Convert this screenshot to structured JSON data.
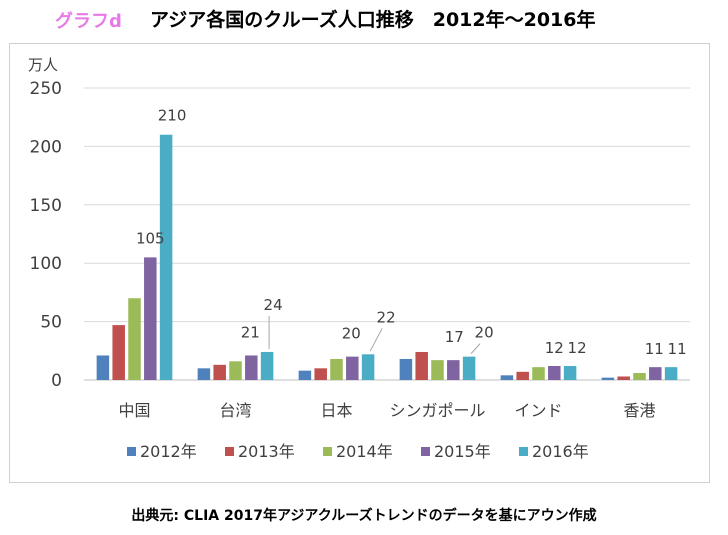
{
  "header": {
    "tag": "グラフd",
    "title": "アジア各国のクルーズ人口推移　2012年～2016年"
  },
  "source": "出典元: CLIA 2017年アジアクルーズトレンドのデータを基にアウン作成",
  "colors": {
    "2012年": "#4f81bd",
    "2013年": "#c0504d",
    "2014年": "#9bbb59",
    "2015年": "#8064a2",
    "2016年": "#4bacc6",
    "grid": "#d9d9d9",
    "callout": "#a6a6a6"
  },
  "chart_data": {
    "type": "bar",
    "title": "アジア各国のクルーズ人口推移　2012年～2016年",
    "ylabel": "万人",
    "xlabel": "",
    "ylim": [
      0,
      250
    ],
    "yticks": [
      0,
      50,
      100,
      150,
      200,
      250
    ],
    "grid": true,
    "legend_position": "bottom",
    "categories": [
      "中国",
      "台湾",
      "日本",
      "シンガポール",
      "インド",
      "香港"
    ],
    "series": [
      {
        "name": "2012年",
        "values": [
          21,
          10,
          8,
          18,
          4,
          2
        ]
      },
      {
        "name": "2013年",
        "values": [
          47,
          13,
          10,
          24,
          7,
          3
        ]
      },
      {
        "name": "2014年",
        "values": [
          70,
          16,
          18,
          17,
          11,
          6
        ]
      },
      {
        "name": "2015年",
        "values": [
          105,
          21,
          20,
          17,
          12,
          11
        ]
      },
      {
        "name": "2016年",
        "values": [
          210,
          24,
          22,
          20,
          12,
          11
        ]
      }
    ],
    "data_labels": [
      {
        "category": "中国",
        "series": "2015年",
        "text": "105"
      },
      {
        "category": "中国",
        "series": "2016年",
        "text": "210"
      },
      {
        "category": "台湾",
        "series": "2015年",
        "text": "21"
      },
      {
        "category": "台湾",
        "series": "2016年",
        "text": "24"
      },
      {
        "category": "日本",
        "series": "2015年",
        "text": "20"
      },
      {
        "category": "日本",
        "series": "2016年",
        "text": "22"
      },
      {
        "category": "シンガポール",
        "series": "2015年",
        "text": "17"
      },
      {
        "category": "シンガポール",
        "series": "2016年",
        "text": "20"
      },
      {
        "category": "インド",
        "series": "2015年",
        "text": "12"
      },
      {
        "category": "インド",
        "series": "2016年",
        "text": "12"
      },
      {
        "category": "香港",
        "series": "2015年",
        "text": "11"
      },
      {
        "category": "香港",
        "series": "2016年",
        "text": "11"
      }
    ]
  }
}
